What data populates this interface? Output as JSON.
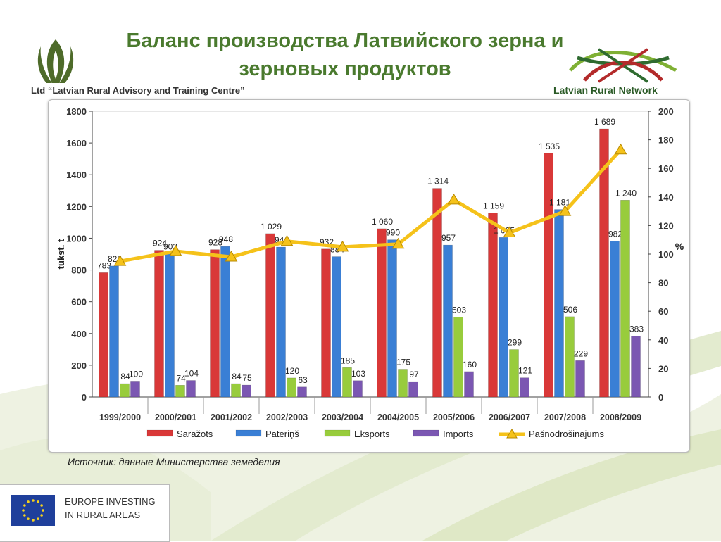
{
  "header": {
    "title_line1": "Баланс производства Латвийского зерна и",
    "title_line2": "зерновых продуктов",
    "left_org": "Ltd “Latvian Rural Advisory and Training Centre”",
    "right_org": "Latvian Rural Network"
  },
  "footer": {
    "source": "Источник:  данные Министерства земеделия",
    "eu_line1": "EUROPE INVESTING",
    "eu_line2": "IN RURAL AREAS"
  },
  "colors": {
    "title_green": "#4a7a2e",
    "sarazots": "#d93838",
    "paterins": "#3a7fd5",
    "eksports": "#98cc3c",
    "imports": "#7b57b2",
    "line": "#f5c21a"
  },
  "chart_data": {
    "type": "bar",
    "categories": [
      "1999/2000",
      "2000/2001",
      "2001/2002",
      "2002/2003",
      "2003/2004",
      "2004/2005",
      "2005/2006",
      "2006/2007",
      "2007/2008",
      "2008/2009"
    ],
    "series": [
      {
        "name": "Saražots",
        "values": [
          783,
          924,
          928,
          1029,
          932,
          1060,
          1314,
          1159,
          1535,
          1689
        ],
        "labels": [
          "783",
          "924",
          "928",
          "1 029",
          "932",
          "1 060",
          "1 314",
          "1 159",
          "1 535",
          "1 689"
        ]
      },
      {
        "name": "Patēriņš",
        "values": [
          825,
          902,
          948,
          944,
          884,
          990,
          957,
          1005,
          1181,
          982
        ],
        "labels": [
          "825",
          "902",
          "948",
          "944",
          "884",
          "990",
          "957",
          "1 005",
          "1 181",
          "982"
        ]
      },
      {
        "name": "Eksports",
        "values": [
          84,
          74,
          84,
          120,
          185,
          175,
          503,
          299,
          506,
          1240
        ],
        "labels": [
          "84",
          "74",
          "84",
          "120",
          "185",
          "175",
          "503",
          "299",
          "506",
          "1 240"
        ]
      },
      {
        "name": "Imports",
        "values": [
          100,
          104,
          75,
          63,
          103,
          97,
          160,
          121,
          229,
          383
        ],
        "labels": [
          "100",
          "104",
          "75",
          "63",
          "103",
          "97",
          "160",
          "121",
          "229",
          "383"
        ]
      }
    ],
    "line_series": {
      "name": "Pašnodrošinājums",
      "values": [
        95,
        102,
        98,
        109,
        105,
        107,
        138,
        115,
        130,
        173
      ]
    },
    "ylabel": "tūkst. t",
    "y2label": "%",
    "ylim": [
      0,
      1800
    ],
    "yticks": [
      "0",
      "200",
      "400",
      "600",
      "800",
      "1000",
      "1200",
      "1400",
      "1600",
      "1800"
    ],
    "y2lim": [
      0,
      200
    ],
    "y2ticks": [
      "0",
      "20",
      "40",
      "60",
      "80",
      "100",
      "120",
      "140",
      "160",
      "180",
      "200"
    ],
    "legend_position": "bottom"
  }
}
